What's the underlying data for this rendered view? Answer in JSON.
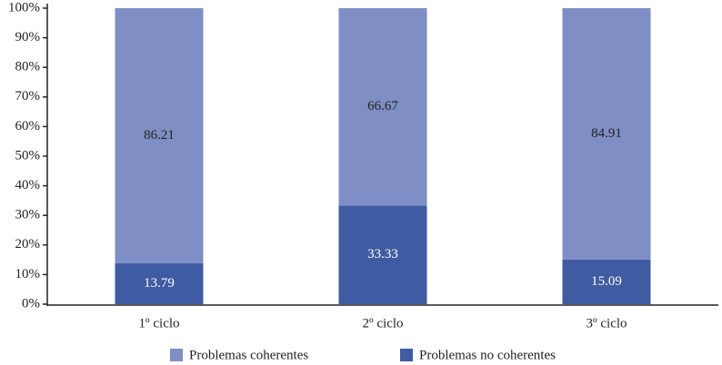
{
  "chart_data": {
    "type": "stacked_bar",
    "categories": [
      "1º ciclo",
      "2º ciclo",
      "3º ciclo"
    ],
    "series": [
      {
        "name": "Problemas coherentes",
        "color": "#7f8ec4",
        "values": [
          86.21,
          66.67,
          84.91
        ]
      },
      {
        "name": "Problemas no coherentes",
        "color": "#3f5ba1",
        "values": [
          13.79,
          33.33,
          15.09
        ]
      }
    ],
    "ylim": [
      0,
      100
    ],
    "yticks": [
      {
        "value": 0,
        "label": "0%"
      },
      {
        "value": 10,
        "label": "10%"
      },
      {
        "value": 20,
        "label": "20%"
      },
      {
        "value": 30,
        "label": "30%"
      },
      {
        "value": 40,
        "label": "40%"
      },
      {
        "value": 50,
        "label": "50%"
      },
      {
        "value": 60,
        "label": "60%"
      },
      {
        "value": 70,
        "label": "70%"
      },
      {
        "value": 80,
        "label": "80%"
      },
      {
        "value": 90,
        "label": "90%"
      },
      {
        "value": 100,
        "label": "100%"
      }
    ],
    "legend": "bottom"
  }
}
